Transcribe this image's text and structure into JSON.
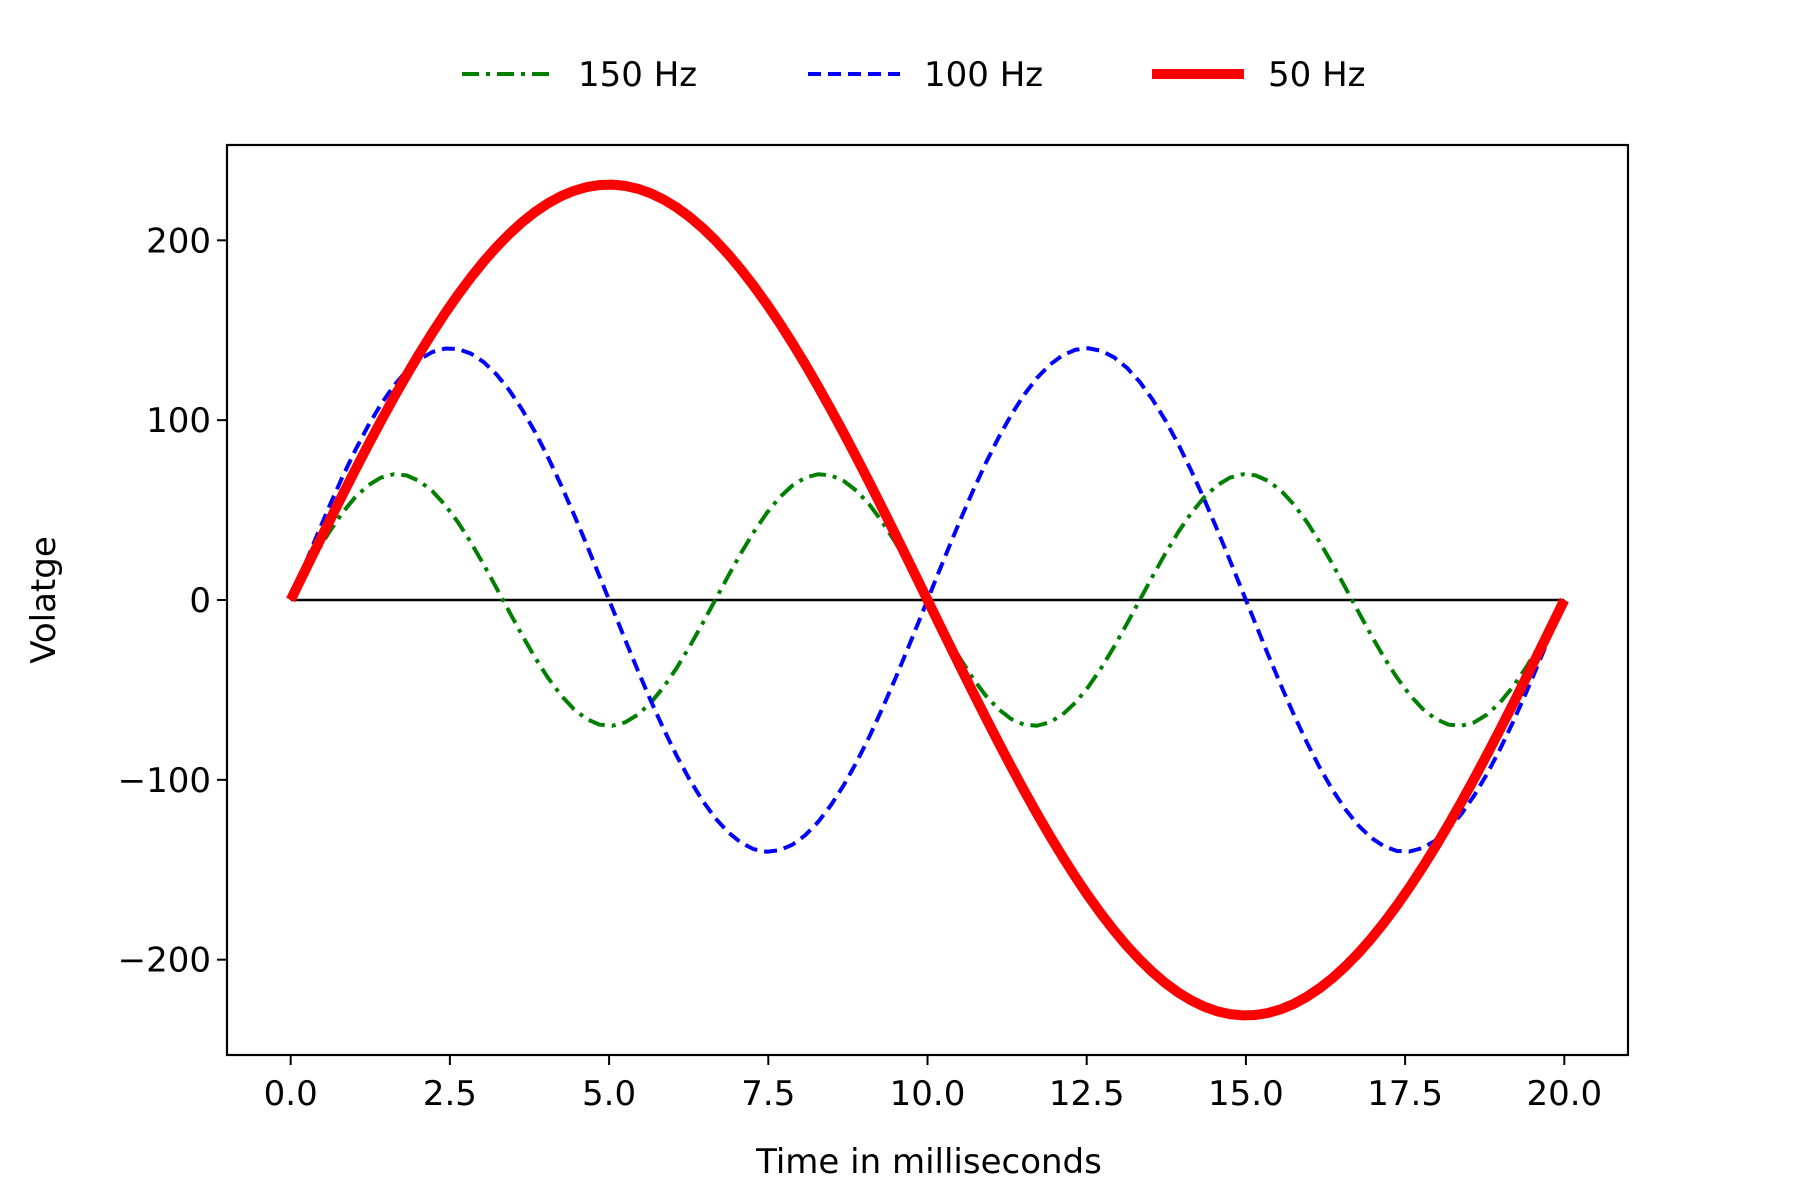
{
  "chart_data": {
    "type": "line",
    "title": "",
    "xlabel": "Time in milliseconds",
    "ylabel": "Volatge",
    "xlim": [
      -1.0,
      21.0
    ],
    "ylim": [
      -253,
      253
    ],
    "xticks": [
      0.0,
      2.5,
      5.0,
      7.5,
      10.0,
      12.5,
      15.0,
      17.5,
      20.0
    ],
    "xtick_labels": [
      "0.0",
      "2.5",
      "5.0",
      "7.5",
      "10.0",
      "12.5",
      "15.0",
      "17.5",
      "20.0"
    ],
    "yticks": [
      -200,
      -100,
      0,
      100,
      200
    ],
    "ytick_labels": [
      "−200",
      "−100",
      "0",
      "100",
      "200"
    ],
    "grid": false,
    "legend_position": "top-center",
    "zero_line": {
      "color": "#000000"
    },
    "series": [
      {
        "name": "150 Hz",
        "frequency_hz": 150,
        "amplitude": 70,
        "color": "#008000",
        "style": "dashdot",
        "x_range_ms": [
          0,
          20
        ],
        "samples": 100
      },
      {
        "name": "100 Hz",
        "frequency_hz": 100,
        "amplitude": 140,
        "color": "#0000ff",
        "style": "dashed",
        "x_range_ms": [
          0,
          20
        ],
        "samples": 100
      },
      {
        "name": "50 Hz",
        "frequency_hz": 50,
        "amplitude": 231,
        "color": "#ff0000",
        "style": "solid",
        "x_range_ms": [
          0,
          20
        ],
        "samples": 100
      }
    ]
  }
}
